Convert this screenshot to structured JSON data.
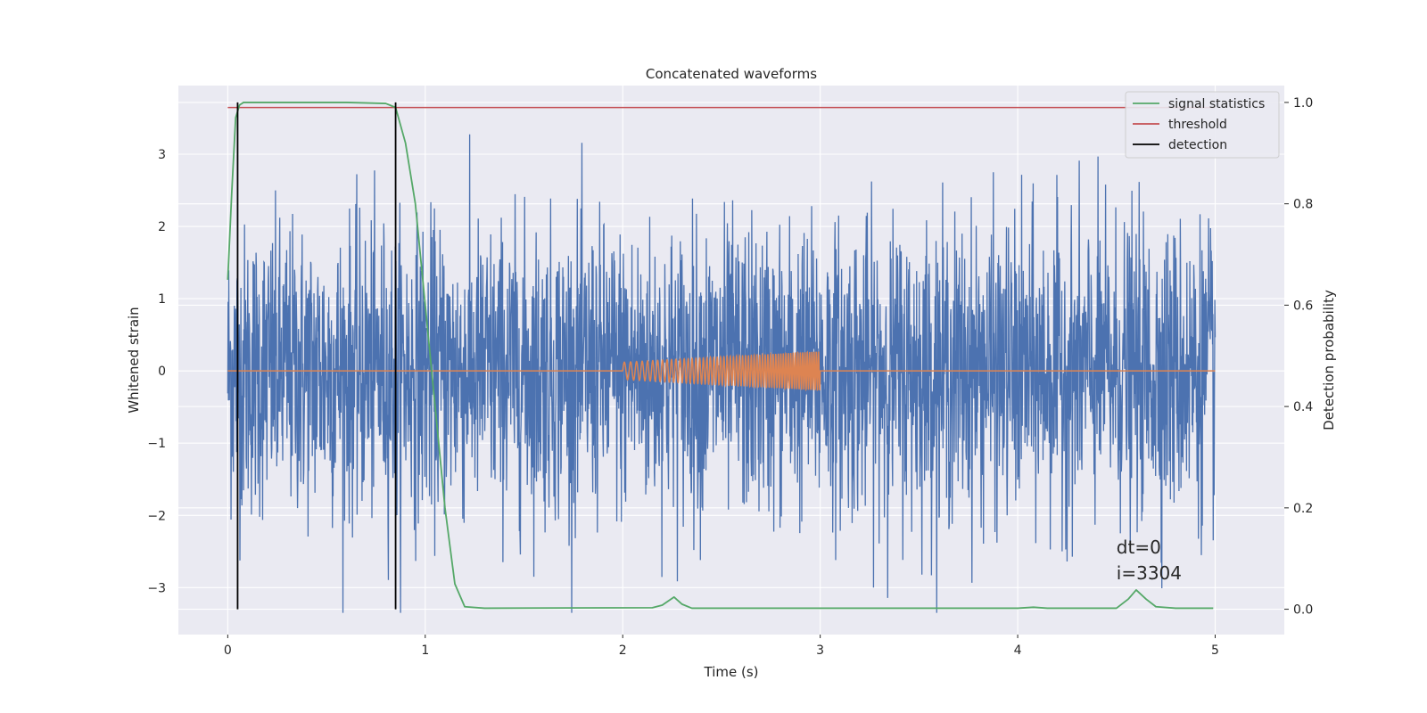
{
  "chart_data": {
    "type": "line",
    "title": "Concatenated waveforms",
    "xlabel": "Time (s)",
    "ylabel": "Whitened strain",
    "y2label": "Detection probability",
    "xlim": [
      -0.25,
      5.35
    ],
    "ylim": [
      -3.65,
      3.95
    ],
    "y2lim": [
      -0.05,
      1.0333
    ],
    "xticks": [
      0,
      1,
      2,
      3,
      4,
      5
    ],
    "yticks": [
      -3,
      -2,
      -1,
      0,
      1,
      2,
      3
    ],
    "y2ticks": [
      0.0,
      0.2,
      0.4,
      0.6,
      0.8,
      1.0
    ],
    "ytick_labels": [
      "−3",
      "−2",
      "−1",
      "0",
      "1",
      "2",
      "3"
    ],
    "y2tick_labels": [
      "0.0",
      "0.2",
      "0.4",
      "0.6",
      "0.8",
      "1.0"
    ],
    "grid": true,
    "legend_position": "top-right",
    "colors": {
      "background": "#eaeaf2",
      "grid": "#ffffff",
      "strain": "#4c72b0",
      "injection": "#dd8452",
      "statistic": "#55a868",
      "threshold": "#c44e52",
      "detection": "#000000"
    },
    "series": [
      {
        "name": "",
        "kind": "noise",
        "axis": "left",
        "description_values": {
          "x_start": 0.0,
          "x_end": 5.0,
          "typical_amplitude": 1.0,
          "peak_max": 3.6,
          "peak_min": -3.35
        }
      },
      {
        "name": "",
        "kind": "chirp",
        "axis": "left",
        "x_start": 2.0,
        "x_end": 3.0,
        "amplitude_start": 0.12,
        "amplitude_end": 0.27,
        "baseline": 0
      },
      {
        "name": "signal statistics",
        "kind": "probability",
        "axis": "right",
        "x": [
          0.0,
          0.02,
          0.04,
          0.06,
          0.08,
          0.1,
          0.3,
          0.6,
          0.8,
          0.85,
          0.9,
          0.95,
          1.0,
          1.05,
          1.1,
          1.15,
          1.2,
          1.3,
          2.15,
          2.2,
          2.26,
          2.3,
          2.35,
          3.0,
          4.0,
          4.08,
          4.15,
          4.5,
          4.56,
          4.6,
          4.65,
          4.7,
          4.8,
          4.99
        ],
        "y": [
          0.65,
          0.82,
          0.97,
          0.995,
          1.0,
          1.0,
          1.0,
          1.0,
          0.998,
          0.99,
          0.92,
          0.8,
          0.6,
          0.4,
          0.2,
          0.05,
          0.005,
          0.002,
          0.003,
          0.008,
          0.024,
          0.01,
          0.002,
          0.002,
          0.002,
          0.004,
          0.002,
          0.002,
          0.02,
          0.038,
          0.02,
          0.005,
          0.002,
          0.002
        ]
      },
      {
        "name": "threshold",
        "kind": "hline",
        "axis": "right",
        "x": [
          0.0,
          5.0
        ],
        "y": [
          0.99,
          0.99
        ]
      },
      {
        "name": "detection",
        "kind": "vlines",
        "axis": "right",
        "x": [
          0.05,
          0.85
        ],
        "y": [
          0.0,
          1.0
        ]
      }
    ],
    "annotation": {
      "lines": [
        "dt=0",
        "i=3304"
      ],
      "x": 4.5,
      "y": 0.11
    }
  }
}
